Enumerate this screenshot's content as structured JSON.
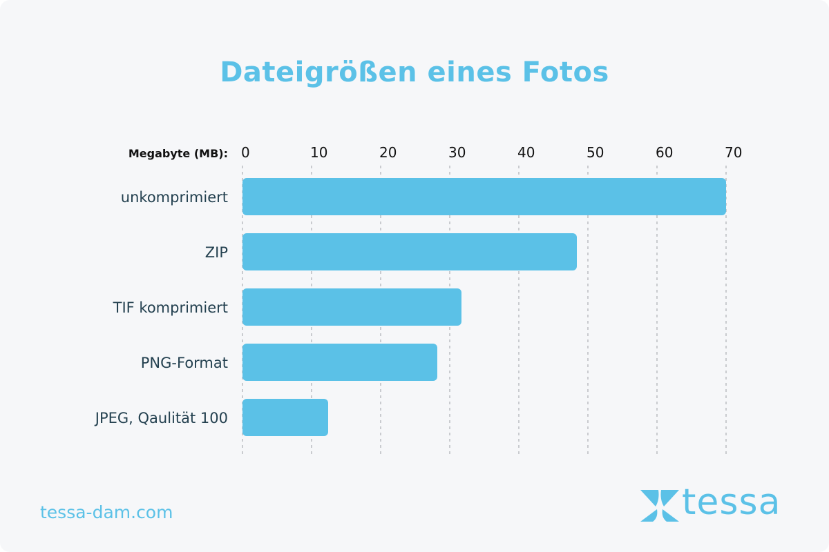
{
  "brand_color": "#5bc1e7",
  "footer": {
    "url": "tessa-dam.com",
    "logo_text": "tessa"
  },
  "chart_data": {
    "type": "bar",
    "orientation": "horizontal",
    "title": "Dateigrößen eines Fotos",
    "xlabel": "Megabyte (MB):",
    "ylabel": "",
    "xlim": [
      0,
      70
    ],
    "ticks": [
      0,
      10,
      20,
      30,
      40,
      50,
      60,
      70
    ],
    "tick_labels": [
      "0",
      "10",
      "20",
      "30",
      "40",
      "50",
      "60",
      "70"
    ],
    "grid": true,
    "categories": [
      "unkomprimiert",
      "ZIP",
      "TIF komprimiert",
      "PNG-Format",
      "JPEG, Qaulität 100"
    ],
    "values": [
      70,
      48.4,
      31.7,
      28.2,
      12.4
    ],
    "bar_color": "#5bc1e7"
  }
}
